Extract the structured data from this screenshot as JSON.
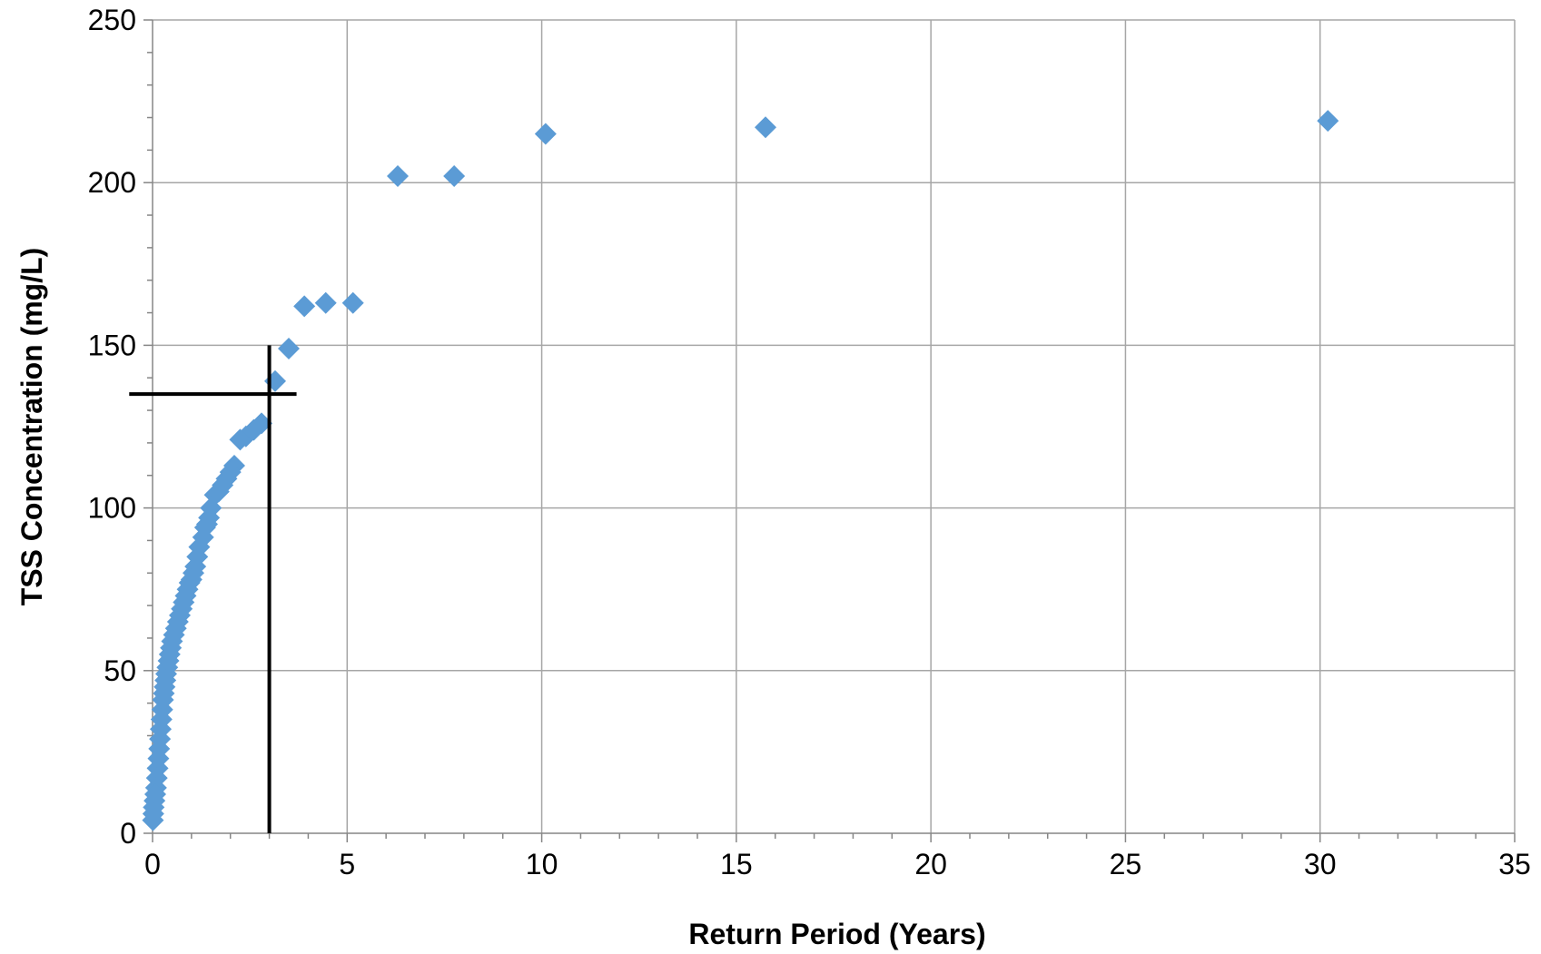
{
  "chart_data": {
    "type": "scatter",
    "title": "",
    "xlabel": "Return Period (Years)",
    "ylabel": "TSS Concentration (mg/L)",
    "xlim": [
      0,
      35
    ],
    "ylim": [
      0,
      250
    ],
    "x_ticks": [
      "0",
      "5",
      "10",
      "15",
      "20",
      "25",
      "30",
      "35"
    ],
    "y_ticks": [
      "0",
      "50",
      "100",
      "150",
      "200",
      "250"
    ],
    "x_tick_values": [
      0,
      5,
      10,
      15,
      20,
      25,
      30,
      35
    ],
    "y_tick_values": [
      0,
      50,
      100,
      150,
      200,
      250
    ],
    "grid": true,
    "legend": "none",
    "marker": "diamond",
    "series_color": "#5b9bd5",
    "series": [
      {
        "x": [
          30.2,
          15.75,
          10.1,
          7.75,
          6.3,
          5.15,
          4.45,
          3.9,
          3.5,
          3.15,
          2.8,
          2.6,
          2.4,
          2.25,
          2.1,
          2.0,
          1.9,
          1.8,
          1.7,
          1.6,
          1.5,
          1.45,
          1.4,
          1.35,
          1.3,
          1.2,
          1.15,
          1.1,
          1.05,
          1.0,
          0.95,
          0.9,
          0.85,
          0.8,
          0.75,
          0.7,
          0.65,
          0.6,
          0.55,
          0.5,
          0.47,
          0.44,
          0.41,
          0.38,
          0.35,
          0.33,
          0.31,
          0.29,
          0.27,
          0.25,
          0.23,
          0.21,
          0.19,
          0.17,
          0.15,
          0.13,
          0.11,
          0.09,
          0.07,
          0.05,
          0.03,
          0.02,
          0.01
        ],
        "y": [
          219,
          217,
          215,
          202,
          202,
          163,
          163,
          162,
          149,
          139,
          126,
          124,
          122,
          121,
          113,
          111,
          109,
          107,
          105,
          104,
          100,
          97,
          95,
          94,
          91,
          88,
          85,
          82,
          80,
          78,
          77,
          75,
          73,
          71,
          69,
          67,
          65,
          63,
          61,
          59,
          57,
          55,
          53,
          51,
          49,
          47,
          45,
          43,
          41,
          38,
          35,
          32,
          29,
          26,
          23,
          20,
          17,
          14,
          12,
          10,
          8,
          6,
          4
        ]
      }
    ],
    "annotations": [
      {
        "type": "hline",
        "y": 135,
        "x_from": -0.6,
        "x_to": 3.7,
        "color": "#000000"
      },
      {
        "type": "vline",
        "x": 3.0,
        "y_from": 0,
        "y_to": 150,
        "color": "#000000"
      }
    ],
    "gridline_color": "#a6a6a6",
    "axis_color": "#868686"
  }
}
